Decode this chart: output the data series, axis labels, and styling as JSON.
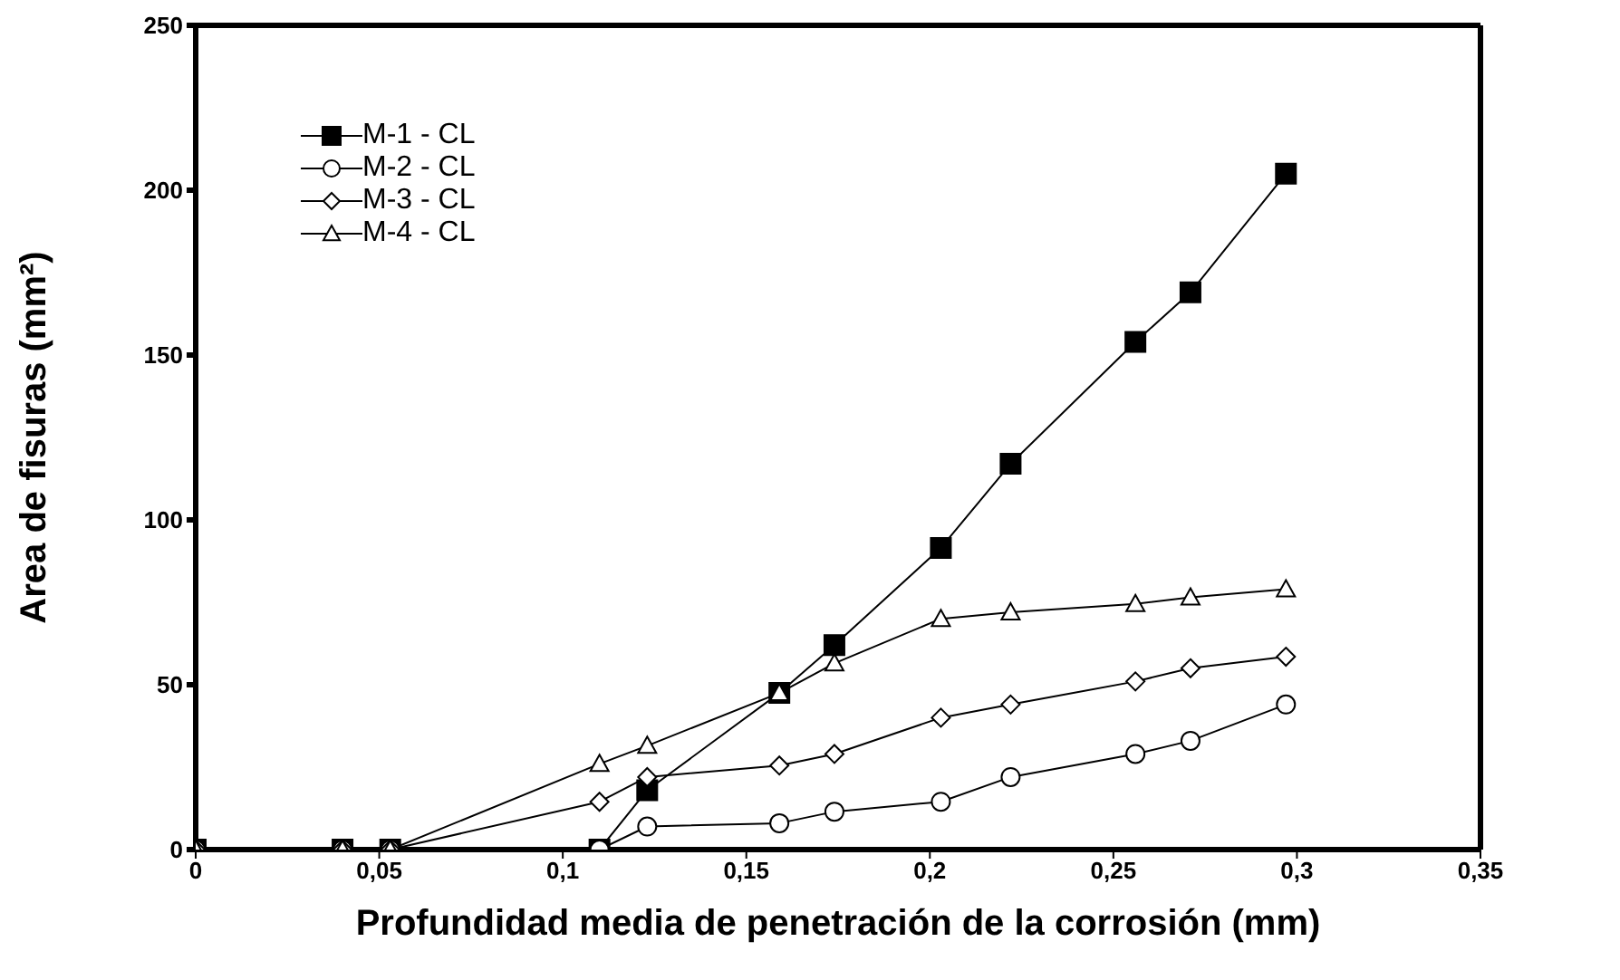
{
  "chart_data": {
    "type": "line",
    "xlabel": "Profundidad media de penetración de la corrosión (mm)",
    "ylabel": "Area de fisuras (mm²)",
    "xlim": [
      0,
      0.35
    ],
    "xticks": [
      0,
      {
        "value": 0.05,
        "label": "0,05"
      },
      {
        "value": 0.1,
        "label": "0,1"
      },
      {
        "value": 0.15,
        "label": "0,15"
      },
      {
        "value": 0.2,
        "label": "0,2"
      },
      {
        "value": 0.25,
        "label": "0,25"
      },
      {
        "value": 0.3,
        "label": "0,3"
      },
      {
        "value": 0.35,
        "label": "0,35"
      }
    ],
    "ylim": [
      0,
      250
    ],
    "yticks": [
      0,
      50,
      100,
      150,
      200,
      250
    ],
    "grid": false,
    "legend": "top left",
    "line_style": "solid",
    "series": [
      {
        "name": "M-1 - CL",
        "color": "#000000",
        "marker": "square",
        "x": [
          0,
          0.04,
          0.053,
          0.11,
          0.123,
          0.159,
          0.174,
          0.203,
          0.222,
          0.256,
          0.271,
          0.297
        ],
        "values": [
          0,
          0,
          0,
          0,
          18,
          47.5,
          62,
          91.5,
          117,
          154,
          169,
          205
        ]
      },
      {
        "name": "M-2 - CL",
        "color": "#000000",
        "marker": "circle",
        "x": [
          0,
          0.04,
          0.053,
          0.11,
          0.123,
          0.159,
          0.174,
          0.203,
          0.222,
          0.256,
          0.271,
          0.297
        ],
        "values": [
          0,
          0,
          0,
          0,
          7,
          8,
          11.5,
          14.5,
          22,
          29,
          33,
          44
        ]
      },
      {
        "name": "M-3 - CL",
        "color": "#000000",
        "marker": "diamond",
        "x": [
          0,
          0.04,
          0.053,
          0.11,
          0.123,
          0.159,
          0.174,
          0.203,
          0.222,
          0.256,
          0.271,
          0.297
        ],
        "values": [
          0,
          0,
          0,
          14.5,
          22,
          25.5,
          29,
          40,
          44,
          51,
          55,
          58.5
        ]
      },
      {
        "name": "M-4 - CL",
        "color": "#000000",
        "marker": "triangle",
        "x": [
          0,
          0.04,
          0.053,
          0.11,
          0.123,
          0.159,
          0.174,
          0.203,
          0.222,
          0.256,
          0.271,
          0.297
        ],
        "values": [
          0,
          0,
          0,
          26,
          31.5,
          47.5,
          56.5,
          70,
          72,
          74.5,
          76.5,
          79
        ]
      }
    ]
  }
}
